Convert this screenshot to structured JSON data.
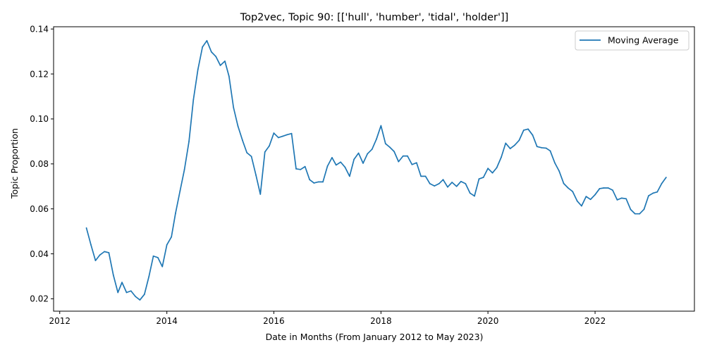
{
  "chart_data": {
    "type": "line",
    "title": "Top2vec, Topic 90: [['hull', 'humber', 'tidal', 'holder']]",
    "xlabel": "Date in Months (From January 2012 to May 2023)",
    "ylabel": "Topic Proportion",
    "xlim": [
      "2011-11-20",
      "2023-11-10"
    ],
    "ylim": [
      0.0145,
      0.141
    ],
    "x_ticks": [
      "2012",
      "2014",
      "2016",
      "2018",
      "2020",
      "2022"
    ],
    "y_ticks": [
      "0.02",
      "0.04",
      "0.06",
      "0.08",
      "0.10",
      "0.12",
      "0.14"
    ],
    "grid": false,
    "legend": {
      "position": "top-right",
      "entries": [
        "Moving Average"
      ]
    },
    "series": [
      {
        "name": "Moving Average",
        "color": "#1f77b4",
        "points": [
          [
            "2012-07",
            0.0515
          ],
          [
            "2012-08",
            0.044
          ],
          [
            "2012-09",
            0.037
          ],
          [
            "2012-10",
            0.0395
          ],
          [
            "2012-11",
            0.041
          ],
          [
            "2012-12",
            0.0405
          ],
          [
            "2013-01",
            0.0305
          ],
          [
            "2013-02",
            0.0228
          ],
          [
            "2013-03",
            0.0273
          ],
          [
            "2013-04",
            0.0228
          ],
          [
            "2013-05",
            0.0235
          ],
          [
            "2013-06",
            0.021
          ],
          [
            "2013-07",
            0.0195
          ],
          [
            "2013-08",
            0.022
          ],
          [
            "2013-09",
            0.03
          ],
          [
            "2013-10",
            0.039
          ],
          [
            "2013-11",
            0.0383
          ],
          [
            "2013-12",
            0.0343
          ],
          [
            "2014-01",
            0.044
          ],
          [
            "2014-02",
            0.0475
          ],
          [
            "2014-03",
            0.058
          ],
          [
            "2014-04",
            0.068
          ],
          [
            "2014-05",
            0.0775
          ],
          [
            "2014-06",
            0.09
          ],
          [
            "2014-07",
            0.1085
          ],
          [
            "2014-08",
            0.122
          ],
          [
            "2014-09",
            0.132
          ],
          [
            "2014-10",
            0.1348
          ],
          [
            "2014-11",
            0.1298
          ],
          [
            "2014-12",
            0.1278
          ],
          [
            "2015-01",
            0.1238
          ],
          [
            "2015-02",
            0.1257
          ],
          [
            "2015-03",
            0.119
          ],
          [
            "2015-04",
            0.105
          ],
          [
            "2015-05",
            0.0968
          ],
          [
            "2015-06",
            0.0905
          ],
          [
            "2015-07",
            0.085
          ],
          [
            "2015-08",
            0.0833
          ],
          [
            "2015-09",
            0.075
          ],
          [
            "2015-10",
            0.0665
          ],
          [
            "2015-11",
            0.0853
          ],
          [
            "2015-12",
            0.088
          ],
          [
            "2016-01",
            0.0937
          ],
          [
            "2016-02",
            0.0917
          ],
          [
            "2016-03",
            0.0923
          ],
          [
            "2016-04",
            0.093
          ],
          [
            "2016-05",
            0.0935
          ],
          [
            "2016-06",
            0.0778
          ],
          [
            "2016-07",
            0.0775
          ],
          [
            "2016-08",
            0.0788
          ],
          [
            "2016-09",
            0.073
          ],
          [
            "2016-10",
            0.0715
          ],
          [
            "2016-11",
            0.072
          ],
          [
            "2016-12",
            0.072
          ],
          [
            "2017-01",
            0.079
          ],
          [
            "2017-02",
            0.0828
          ],
          [
            "2017-03",
            0.0795
          ],
          [
            "2017-04",
            0.0808
          ],
          [
            "2017-05",
            0.0785
          ],
          [
            "2017-06",
            0.0745
          ],
          [
            "2017-07",
            0.082
          ],
          [
            "2017-08",
            0.0848
          ],
          [
            "2017-09",
            0.0803
          ],
          [
            "2017-10",
            0.0845
          ],
          [
            "2017-11",
            0.0865
          ],
          [
            "2017-12",
            0.091
          ],
          [
            "2018-01",
            0.097
          ],
          [
            "2018-02",
            0.089
          ],
          [
            "2018-03",
            0.0875
          ],
          [
            "2018-04",
            0.0855
          ],
          [
            "2018-05",
            0.081
          ],
          [
            "2018-06",
            0.0835
          ],
          [
            "2018-07",
            0.0835
          ],
          [
            "2018-08",
            0.0797
          ],
          [
            "2018-09",
            0.0805
          ],
          [
            "2018-10",
            0.0745
          ],
          [
            "2018-11",
            0.0745
          ],
          [
            "2018-12",
            0.0712
          ],
          [
            "2019-01",
            0.0702
          ],
          [
            "2019-02",
            0.0712
          ],
          [
            "2019-03",
            0.073
          ],
          [
            "2019-04",
            0.0697
          ],
          [
            "2019-05",
            0.0718
          ],
          [
            "2019-06",
            0.07
          ],
          [
            "2019-07",
            0.0722
          ],
          [
            "2019-08",
            0.0712
          ],
          [
            "2019-09",
            0.067
          ],
          [
            "2019-10",
            0.0657
          ],
          [
            "2019-11",
            0.0733
          ],
          [
            "2019-12",
            0.074
          ],
          [
            "2020-01",
            0.078
          ],
          [
            "2020-02",
            0.076
          ],
          [
            "2020-03",
            0.0783
          ],
          [
            "2020-04",
            0.083
          ],
          [
            "2020-05",
            0.0892
          ],
          [
            "2020-06",
            0.0868
          ],
          [
            "2020-07",
            0.0883
          ],
          [
            "2020-08",
            0.0905
          ],
          [
            "2020-09",
            0.095
          ],
          [
            "2020-10",
            0.0955
          ],
          [
            "2020-11",
            0.0928
          ],
          [
            "2020-12",
            0.0877
          ],
          [
            "2021-01",
            0.0872
          ],
          [
            "2021-02",
            0.087
          ],
          [
            "2021-03",
            0.0858
          ],
          [
            "2021-04",
            0.0805
          ],
          [
            "2021-05",
            0.0768
          ],
          [
            "2021-06",
            0.0713
          ],
          [
            "2021-07",
            0.0693
          ],
          [
            "2021-08",
            0.0677
          ],
          [
            "2021-09",
            0.0635
          ],
          [
            "2021-10",
            0.0613
          ],
          [
            "2021-11",
            0.0655
          ],
          [
            "2021-12",
            0.0642
          ],
          [
            "2022-01",
            0.0663
          ],
          [
            "2022-02",
            0.069
          ],
          [
            "2022-03",
            0.0693
          ],
          [
            "2022-04",
            0.0693
          ],
          [
            "2022-05",
            0.0683
          ],
          [
            "2022-06",
            0.064
          ],
          [
            "2022-07",
            0.0648
          ],
          [
            "2022-08",
            0.0645
          ],
          [
            "2022-09",
            0.0597
          ],
          [
            "2022-10",
            0.0578
          ],
          [
            "2022-11",
            0.0578
          ],
          [
            "2022-12",
            0.0598
          ],
          [
            "2023-01",
            0.0658
          ],
          [
            "2023-02",
            0.067
          ],
          [
            "2023-03",
            0.0675
          ],
          [
            "2023-04",
            0.0713
          ],
          [
            "2023-05",
            0.074
          ]
        ]
      }
    ]
  }
}
